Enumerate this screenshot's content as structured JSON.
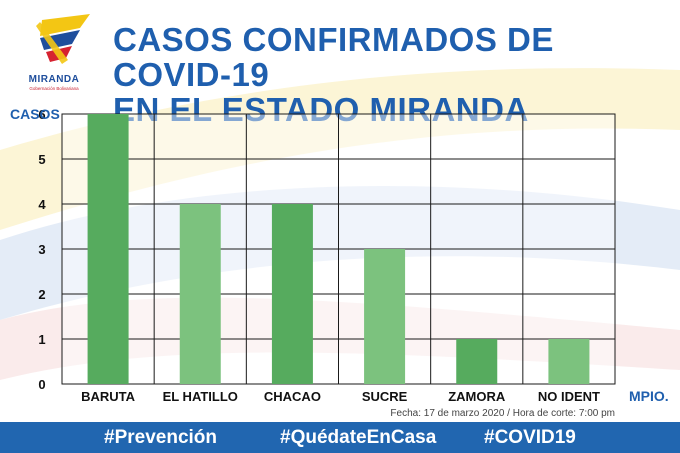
{
  "logo": {
    "name": "MIRANDA",
    "subtitle": "Gobernación Bolivariana"
  },
  "title": {
    "line1": "CASOS CONFIRMADOS DE COVID-19",
    "line2": "EN EL ESTADO MIRANDA"
  },
  "colors": {
    "title": "#1f5fae",
    "bar_dark": "#56ab5e",
    "bar_light": "#7cc27e",
    "footer": "#2166b0"
  },
  "chart_data": {
    "type": "bar",
    "ylabel": "CASOS",
    "xlabel": "MPIO.",
    "categories": [
      "BARUTA",
      "EL HATILLO",
      "CHACAO",
      "SUCRE",
      "ZAMORA",
      "NO IDENT"
    ],
    "values": [
      6,
      4,
      4,
      3,
      1,
      1
    ],
    "ylim": [
      0,
      6
    ],
    "yticks": [
      0,
      1,
      2,
      3,
      4,
      5,
      6
    ],
    "grid": true
  },
  "note": "Fecha: 17 de marzo 2020 / Hora de corte: 7:00 pm",
  "footer": {
    "tags": [
      "#Prevención",
      "#QuédateEnCasa",
      "#COVID19"
    ]
  }
}
